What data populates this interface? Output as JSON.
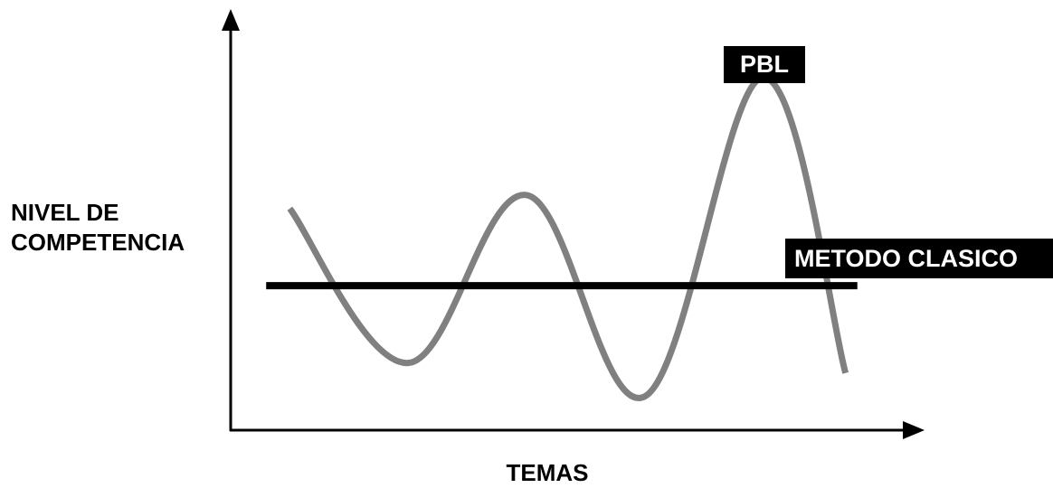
{
  "chart_data": {
    "type": "line",
    "title": "",
    "xlabel": "TEMAS",
    "ylabel": [
      "NIVEL DE",
      "COMPETENCIA"
    ],
    "grid": false,
    "ticks": false,
    "series": [
      {
        "name": "PBL",
        "color": "#808080",
        "points": [
          [
            0.0,
            6.1
          ],
          [
            1.0,
            1.5
          ],
          [
            2.0,
            6.5
          ],
          [
            3.0,
            0.5
          ],
          [
            4.0,
            10.0
          ],
          [
            4.7,
            1.2
          ]
        ]
      },
      {
        "name": "METODO CLASICO",
        "color": "#000000",
        "points": [
          [
            -0.2,
            3.8
          ],
          [
            4.8,
            3.8
          ]
        ]
      }
    ],
    "xlim": [
      -0.5,
      5.2
    ],
    "ylim": [
      -0.5,
      11.5
    ]
  }
}
